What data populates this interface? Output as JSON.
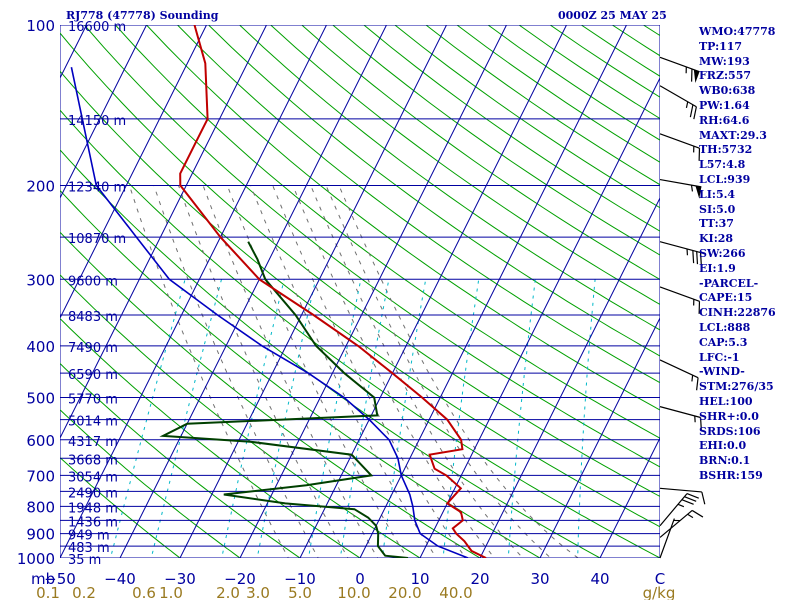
{
  "header": {
    "station": "RJ778 (47778) Sounding",
    "time": "0000Z 25 MAY 25"
  },
  "indices": [
    "WMO:47778",
    "TP:117",
    "MW:193",
    "FRZ:557",
    "WB0:638",
    "PW:1.64",
    "RH:64.6",
    "MAXT:29.3",
    "TH:5732",
    "L57:4.8",
    "LCL:939",
    "LI:5.4",
    "SI:5.0",
    "TT:37",
    "KI:28",
    "SW:266",
    "EI:1.9",
    "-PARCEL-",
    "CAPE:15",
    "CINH:22876",
    "LCL:888",
    "CAP:5.3",
    "LFC:-1",
    "-WIND-",
    "STM:276/35",
    "HEL:100",
    "SHR+:0.0",
    "SRDS:106",
    "EHI:0.0",
    "BRN:0.1",
    "BSHR:159"
  ],
  "colors": {
    "background": "#ffffff",
    "isobar": "#0000a0",
    "isotherm": "#0000a0",
    "dry_adiabat": "#00a000",
    "mixing_ratio": "#00b8c8",
    "moist_adiabat": "#707070",
    "temperature": "#c00000",
    "dewpoint": "#004000",
    "parcel": "#0000c0",
    "wind": "#000000",
    "text": "#0000a0"
  },
  "chart_data": {
    "type": "skew-t",
    "xlabel": "",
    "ylabel": "mb",
    "pressure_levels": [
      100,
      200,
      300,
      400,
      500,
      600,
      700,
      800,
      900,
      1000
    ],
    "temperature_ticks": [
      -50,
      -40,
      -30,
      -20,
      -10,
      0,
      10,
      20,
      30,
      40
    ],
    "temperature_tick_labels": [
      "−50",
      "−40",
      "−30",
      "−20",
      "−10",
      "0",
      "10",
      "20",
      "30",
      "40"
    ],
    "x_end_label": "C",
    "mixing_ratio_ticks": [
      {
        "label": "0.1",
        "temp": -52
      },
      {
        "label": "0.2",
        "temp": -46
      },
      {
        "label": "0.6",
        "temp": -36
      },
      {
        "label": "1.0",
        "temp": -31.5
      },
      {
        "label": "2.0",
        "temp": -22
      },
      {
        "label": "3.0",
        "temp": -17
      },
      {
        "label": "5.0",
        "temp": -10
      },
      {
        "label": "10.0",
        "temp": -1
      },
      {
        "label": "20.0",
        "temp": 7.5
      },
      {
        "label": "40.0",
        "temp": 16
      }
    ],
    "mixing_ratio_unit": "g/kg",
    "height_labels": [
      {
        "p": 100,
        "h": "16600 m"
      },
      {
        "p": 150,
        "h": "14150 m"
      },
      {
        "p": 200,
        "h": "12340 m"
      },
      {
        "p": 250,
        "h": "10870 m"
      },
      {
        "p": 300,
        "h": "9600 m"
      },
      {
        "p": 350,
        "h": "8483 m"
      },
      {
        "p": 400,
        "h": "7490 m"
      },
      {
        "p": 450,
        "h": "6590 m"
      },
      {
        "p": 500,
        "h": "5770 m"
      },
      {
        "p": 550,
        "h": "5014 m"
      },
      {
        "p": 600,
        "h": "4317 m"
      },
      {
        "p": 650,
        "h": "3668 m"
      },
      {
        "p": 700,
        "h": "3054 m"
      },
      {
        "p": 750,
        "h": "2490 m"
      },
      {
        "p": 800,
        "h": "1948 m"
      },
      {
        "p": 850,
        "h": "1436 m"
      },
      {
        "p": 900,
        "h": "949 m"
      },
      {
        "p": 950,
        "h": "483 m"
      },
      {
        "p": 1000,
        "h": "35 m"
      }
    ],
    "temperature": [
      [
        100,
        -72
      ],
      [
        118,
        -67
      ],
      [
        150,
        -62
      ],
      [
        165,
        -62
      ],
      [
        190,
        -62
      ],
      [
        200,
        -61
      ],
      [
        250,
        -50
      ],
      [
        300,
        -40
      ],
      [
        350,
        -28
      ],
      [
        400,
        -18
      ],
      [
        450,
        -10
      ],
      [
        500,
        -3
      ],
      [
        550,
        3
      ],
      [
        600,
        7
      ],
      [
        625,
        8
      ],
      [
        640,
        3
      ],
      [
        680,
        5
      ],
      [
        700,
        7.5
      ],
      [
        740,
        11
      ],
      [
        790,
        10
      ],
      [
        820,
        13
      ],
      [
        850,
        14
      ],
      [
        880,
        13
      ],
      [
        900,
        14
      ],
      [
        930,
        16
      ],
      [
        970,
        18
      ],
      [
        1000,
        21
      ]
    ],
    "dewpoint": [
      [
        255,
        -45
      ],
      [
        275,
        -42
      ],
      [
        300,
        -39
      ],
      [
        350,
        -31
      ],
      [
        400,
        -25
      ],
      [
        450,
        -18
      ],
      [
        500,
        -11
      ],
      [
        540,
        -9
      ],
      [
        560,
        -40
      ],
      [
        590,
        -43
      ],
      [
        605,
        -28
      ],
      [
        640,
        -10
      ],
      [
        700,
        -5
      ],
      [
        730,
        -15
      ],
      [
        760,
        -28
      ],
      [
        790,
        -17
      ],
      [
        810,
        -5
      ],
      [
        840,
        -2
      ],
      [
        870,
        0
      ],
      [
        900,
        1
      ],
      [
        950,
        2
      ],
      [
        990,
        4
      ],
      [
        1000,
        8
      ]
    ],
    "parcel": [
      [
        120,
        -89
      ],
      [
        200,
        -75
      ],
      [
        250,
        -64
      ],
      [
        300,
        -55
      ],
      [
        350,
        -44
      ],
      [
        400,
        -34
      ],
      [
        450,
        -24
      ],
      [
        500,
        -16
      ],
      [
        550,
        -10
      ],
      [
        600,
        -5
      ],
      [
        650,
        -2
      ],
      [
        700,
        0
      ],
      [
        760,
        3
      ],
      [
        800,
        4.5
      ],
      [
        850,
        6
      ],
      [
        900,
        8
      ],
      [
        950,
        12
      ],
      [
        1000,
        18
      ]
    ],
    "wind_barbs": [
      {
        "p": 115,
        "dir": 290,
        "speed": 65
      },
      {
        "p": 130,
        "dir": 300,
        "speed": 25
      },
      {
        "p": 160,
        "dir": 290,
        "speed": 15
      },
      {
        "p": 195,
        "dir": 280,
        "speed": 55
      },
      {
        "p": 255,
        "dir": 285,
        "speed": 35
      },
      {
        "p": 310,
        "dir": 290,
        "speed": 15
      },
      {
        "p": 425,
        "dir": 295,
        "speed": 15
      },
      {
        "p": 520,
        "dir": 285,
        "speed": 15
      },
      {
        "p": 740,
        "dir": 275,
        "speed": 10
      },
      {
        "p": 870,
        "dir": 220,
        "speed": 35
      },
      {
        "p": 915,
        "dir": 230,
        "speed": 15
      },
      {
        "p": 1000,
        "dir": 200,
        "speed": 5
      }
    ]
  }
}
